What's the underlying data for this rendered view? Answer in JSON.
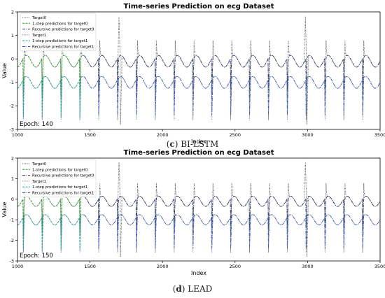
{
  "captions": [
    {
      "letter": "c",
      "text": "BI-LSTM"
    },
    {
      "letter": "d",
      "text": "LEAD"
    }
  ],
  "colors": {
    "target0": "#555555",
    "pred1_target0": "#2e9e2e",
    "recursive_target0": "#2a3a6e",
    "target1": "#7a7a7a",
    "pred1_target1": "#1f9f9f",
    "recursive_target1": "#3a5cc0",
    "axes": "#000000"
  },
  "chart_data": [
    {
      "type": "line",
      "title": "Time-series Prediction on ecg Dataset",
      "xlabel": "Index",
      "ylabel": "Value",
      "xlim": [
        1000,
        3500
      ],
      "ylim": [
        -3,
        2
      ],
      "xticks": [
        "1000",
        "1500",
        "2000",
        "2500",
        "3000",
        "3500"
      ],
      "yticks": [
        "-3",
        "-2",
        "-1",
        "0",
        "1",
        "2"
      ],
      "annotation": "Epoch: 140",
      "legend_position": "top-left",
      "grid": false,
      "series": [
        {
          "name": "Target0",
          "style": "dotted",
          "color_key": "target0",
          "baseline": -0.1,
          "beat_period": 130,
          "beat_start": 1040,
          "spike_min": -1.7,
          "spike_max": 1.8,
          "range": [
            1000,
            3500
          ],
          "big_spikes": [
            1700,
            2985
          ]
        },
        {
          "name": "1-step predictions for target0",
          "style": "dashed",
          "color_key": "pred1_target0",
          "baseline": -0.1,
          "beat_period": 130,
          "beat_start": 1040,
          "spike_min": -1.6,
          "spike_max": -0.2,
          "range": [
            1000,
            1460
          ]
        },
        {
          "name": "Recursive predictions for target0",
          "style": "dashdot",
          "color_key": "recursive_target0",
          "baseline": -0.1,
          "beat_period": 130,
          "beat_start": 1040,
          "spike_min": -1.3,
          "spike_max": -0.3,
          "range": [
            1460,
            3500
          ]
        },
        {
          "name": "Target1",
          "style": "dotted",
          "color_key": "target1",
          "baseline": -1.0,
          "beat_period": 130,
          "beat_start": 1040,
          "spike_min": -2.6,
          "spike_max": -0.8,
          "range": [
            1000,
            3500
          ]
        },
        {
          "name": "1-step predictions for target1",
          "style": "dashed",
          "color_key": "pred1_target1",
          "baseline": -1.0,
          "beat_period": 130,
          "beat_start": 1040,
          "spike_min": -2.5,
          "spike_max": -0.9,
          "range": [
            1000,
            1460
          ]
        },
        {
          "name": "Recursive predictions for target1",
          "style": "dashdot",
          "color_key": "recursive_target1",
          "baseline": -1.0,
          "beat_period": 130,
          "beat_start": 1040,
          "spike_min": -2.4,
          "spike_max": -0.9,
          "range": [
            1460,
            3500
          ]
        }
      ]
    },
    {
      "type": "line",
      "title": "Time-series Prediction on ecg Dataset",
      "xlabel": "Index",
      "ylabel": "Value",
      "xlim": [
        1000,
        3500
      ],
      "ylim": [
        -3,
        2
      ],
      "xticks": [
        "1000",
        "1500",
        "2000",
        "2500",
        "3000",
        "3500"
      ],
      "yticks": [
        "-3",
        "-2",
        "-1",
        "0",
        "1",
        "2"
      ],
      "annotation": "Epoch: 150",
      "legend_position": "top-left",
      "grid": false,
      "series": [
        {
          "name": "Target0",
          "style": "dotted",
          "color_key": "target0",
          "baseline": -0.1,
          "beat_period": 130,
          "beat_start": 1040,
          "spike_min": -1.7,
          "spike_max": 1.8,
          "range": [
            1000,
            3500
          ],
          "big_spikes": [
            1700,
            2985
          ]
        },
        {
          "name": "1-step predictions for target0",
          "style": "dashed",
          "color_key": "pred1_target0",
          "baseline": -0.1,
          "beat_period": 130,
          "beat_start": 1040,
          "spike_min": -1.6,
          "spike_max": -0.2,
          "range": [
            1000,
            1460
          ]
        },
        {
          "name": "Recursive predictions for target0",
          "style": "dashdot",
          "color_key": "recursive_target0",
          "baseline": -0.1,
          "beat_period": 130,
          "beat_start": 1040,
          "spike_min": -1.4,
          "spike_max": -0.3,
          "range": [
            1460,
            3500
          ]
        },
        {
          "name": "Target1",
          "style": "dotted",
          "color_key": "target1",
          "baseline": -1.0,
          "beat_period": 130,
          "beat_start": 1040,
          "spike_min": -2.6,
          "spike_max": -0.8,
          "range": [
            1000,
            3500
          ]
        },
        {
          "name": "1-step predictions for target1",
          "style": "dashed",
          "color_key": "pred1_target1",
          "baseline": -1.0,
          "beat_period": 130,
          "beat_start": 1040,
          "spike_min": -2.5,
          "spike_max": -0.9,
          "range": [
            1000,
            1460
          ]
        },
        {
          "name": "Recursive predictions for target1",
          "style": "dashdot",
          "color_key": "recursive_target1",
          "baseline": -1.0,
          "beat_period": 130,
          "beat_start": 1040,
          "spike_min": -2.4,
          "spike_max": -0.9,
          "range": [
            1460,
            3500
          ]
        }
      ]
    }
  ]
}
